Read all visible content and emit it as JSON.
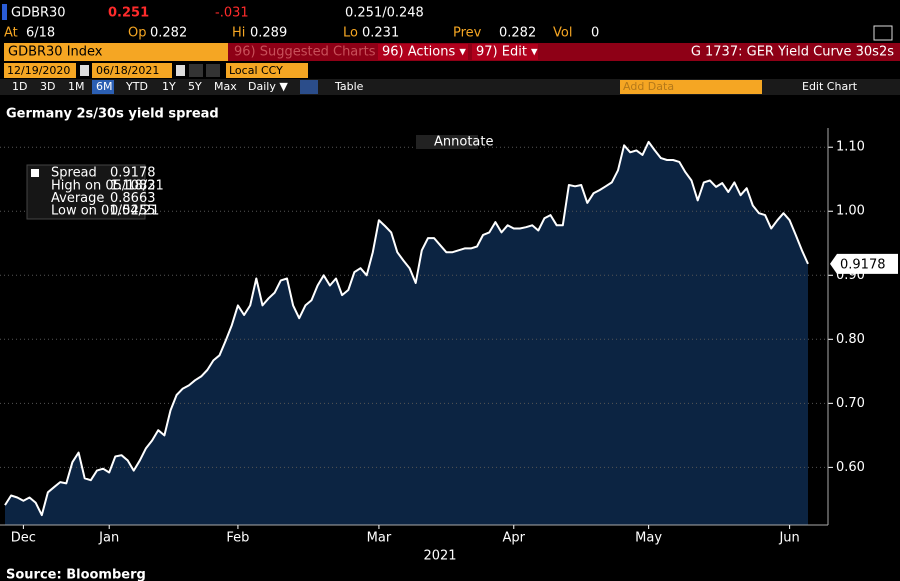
{
  "header": {
    "ticker": "GDBR30",
    "last": "0.251",
    "change": "-.031",
    "bid_ask": "0.251/0.248",
    "quote": [
      {
        "label": "At",
        "value": "6/18"
      },
      {
        "label": "Op",
        "value": "0.282"
      },
      {
        "label": "Hi",
        "value": "0.289"
      },
      {
        "label": "Lo",
        "value": "0.231"
      },
      {
        "label": "Prev",
        "value": "0.282"
      },
      {
        "label": "Vol",
        "value": "0"
      }
    ]
  },
  "menu": {
    "security": "GDBR30 Index",
    "suggested": "96) Suggested Charts",
    "actions": "96) Actions ▾",
    "edit": "97) Edit ▾",
    "function": "G 1737: GER Yield Curve 30s2s"
  },
  "dates": {
    "start": "12/19/2020",
    "end": "06/18/2021",
    "currency": "Local CCY"
  },
  "toolbar": {
    "ranges": [
      "1D",
      "3D",
      "1M",
      "6M",
      "YTD",
      "1Y",
      "5Y",
      "Max"
    ],
    "period": "Daily ▼",
    "table": "Table",
    "add_data": "Add Data",
    "edit_chart": "Edit Chart"
  },
  "annotate": "Annotate",
  "source": "Source: Bloomberg",
  "chart_data": {
    "type": "area",
    "title": "Germany 2s/30s yield spread",
    "xlabel": "2021",
    "categories": [
      null,
      null,
      null,
      "Dec",
      null,
      null,
      null,
      null,
      null,
      null,
      null,
      null,
      null,
      null,
      null,
      null,
      null,
      "Jan",
      null,
      null,
      null,
      null,
      null,
      null,
      null,
      null,
      null,
      null,
      null,
      null,
      null,
      null,
      null,
      null,
      null,
      null,
      null,
      null,
      "Feb",
      null,
      null,
      null,
      null,
      null,
      null,
      null,
      null,
      null,
      null,
      null,
      null,
      null,
      null,
      null,
      null,
      null,
      null,
      null,
      null,
      null,
      null,
      "Mar",
      null,
      null,
      null,
      null,
      null,
      null,
      null,
      null,
      null,
      null,
      null,
      null,
      null,
      null,
      null,
      null,
      null,
      null,
      null,
      null,
      null,
      "Apr",
      null,
      null,
      null,
      null,
      null,
      null,
      null,
      null,
      null,
      null,
      null,
      null,
      null,
      null,
      null,
      null,
      null,
      null,
      null,
      null,
      null,
      "May",
      null,
      null,
      null,
      null,
      null,
      null,
      null,
      null,
      null,
      null,
      null,
      null,
      null,
      null,
      null,
      null,
      null,
      null,
      null,
      null,
      null,
      null,
      "Jun",
      null,
      null,
      null
    ],
    "series": [
      {
        "name": "Spread",
        "color": "#ffffff",
        "fill": "#0c2442",
        "values": [
          0.541,
          0.556,
          0.553,
          0.548,
          0.553,
          0.545,
          0.5255,
          0.561,
          0.569,
          0.577,
          0.575,
          0.608,
          0.623,
          0.583,
          0.58,
          0.595,
          0.598,
          0.592,
          0.617,
          0.619,
          0.611,
          0.595,
          0.611,
          0.63,
          0.642,
          0.658,
          0.65,
          0.689,
          0.713,
          0.723,
          0.728,
          0.736,
          0.742,
          0.752,
          0.767,
          0.775,
          0.798,
          0.822,
          0.853,
          0.838,
          0.853,
          0.895,
          0.853,
          0.864,
          0.873,
          0.892,
          0.895,
          0.853,
          0.833,
          0.853,
          0.861,
          0.884,
          0.9,
          0.884,
          0.895,
          0.869,
          0.877,
          0.905,
          0.911,
          0.9,
          0.936,
          0.986,
          0.977,
          0.967,
          0.936,
          0.923,
          0.911,
          0.888,
          0.939,
          0.958,
          0.958,
          0.947,
          0.936,
          0.936,
          0.939,
          0.942,
          0.942,
          0.945,
          0.963,
          0.967,
          0.983,
          0.967,
          0.978,
          0.973,
          0.973,
          0.975,
          0.978,
          0.97,
          0.989,
          0.994,
          0.978,
          0.978,
          1.041,
          1.039,
          1.041,
          1.013,
          1.028,
          1.033,
          1.039,
          1.045,
          1.064,
          1.103,
          1.092,
          1.095,
          1.088,
          1.1083,
          1.095,
          1.083,
          1.08,
          1.08,
          1.077,
          1.061,
          1.048,
          1.017,
          1.045,
          1.048,
          1.038,
          1.044,
          1.03,
          1.045,
          1.025,
          1.036,
          1.009,
          0.997,
          0.994,
          0.973,
          0.986,
          0.997,
          0.986,
          0.963,
          0.939,
          0.9178
        ]
      }
    ],
    "stats": [
      {
        "label": "High on 05/18/21",
        "value": 1.1083
      },
      {
        "label": "Average",
        "value": 0.8663
      },
      {
        "label": "Low on 01/04/21",
        "value": 0.5255
      }
    ],
    "ylim": [
      0.51,
      1.13
    ],
    "yticks": [
      {
        "value": 0.6,
        "label": "0.60"
      },
      {
        "value": 0.7,
        "label": "0.70"
      },
      {
        "value": 0.8,
        "label": "0.80"
      },
      {
        "value": 0.9,
        "label": "0.90"
      },
      {
        "value": 1.0,
        "label": "1.00"
      },
      {
        "value": 1.1,
        "label": "1.10"
      }
    ],
    "grid": true
  }
}
